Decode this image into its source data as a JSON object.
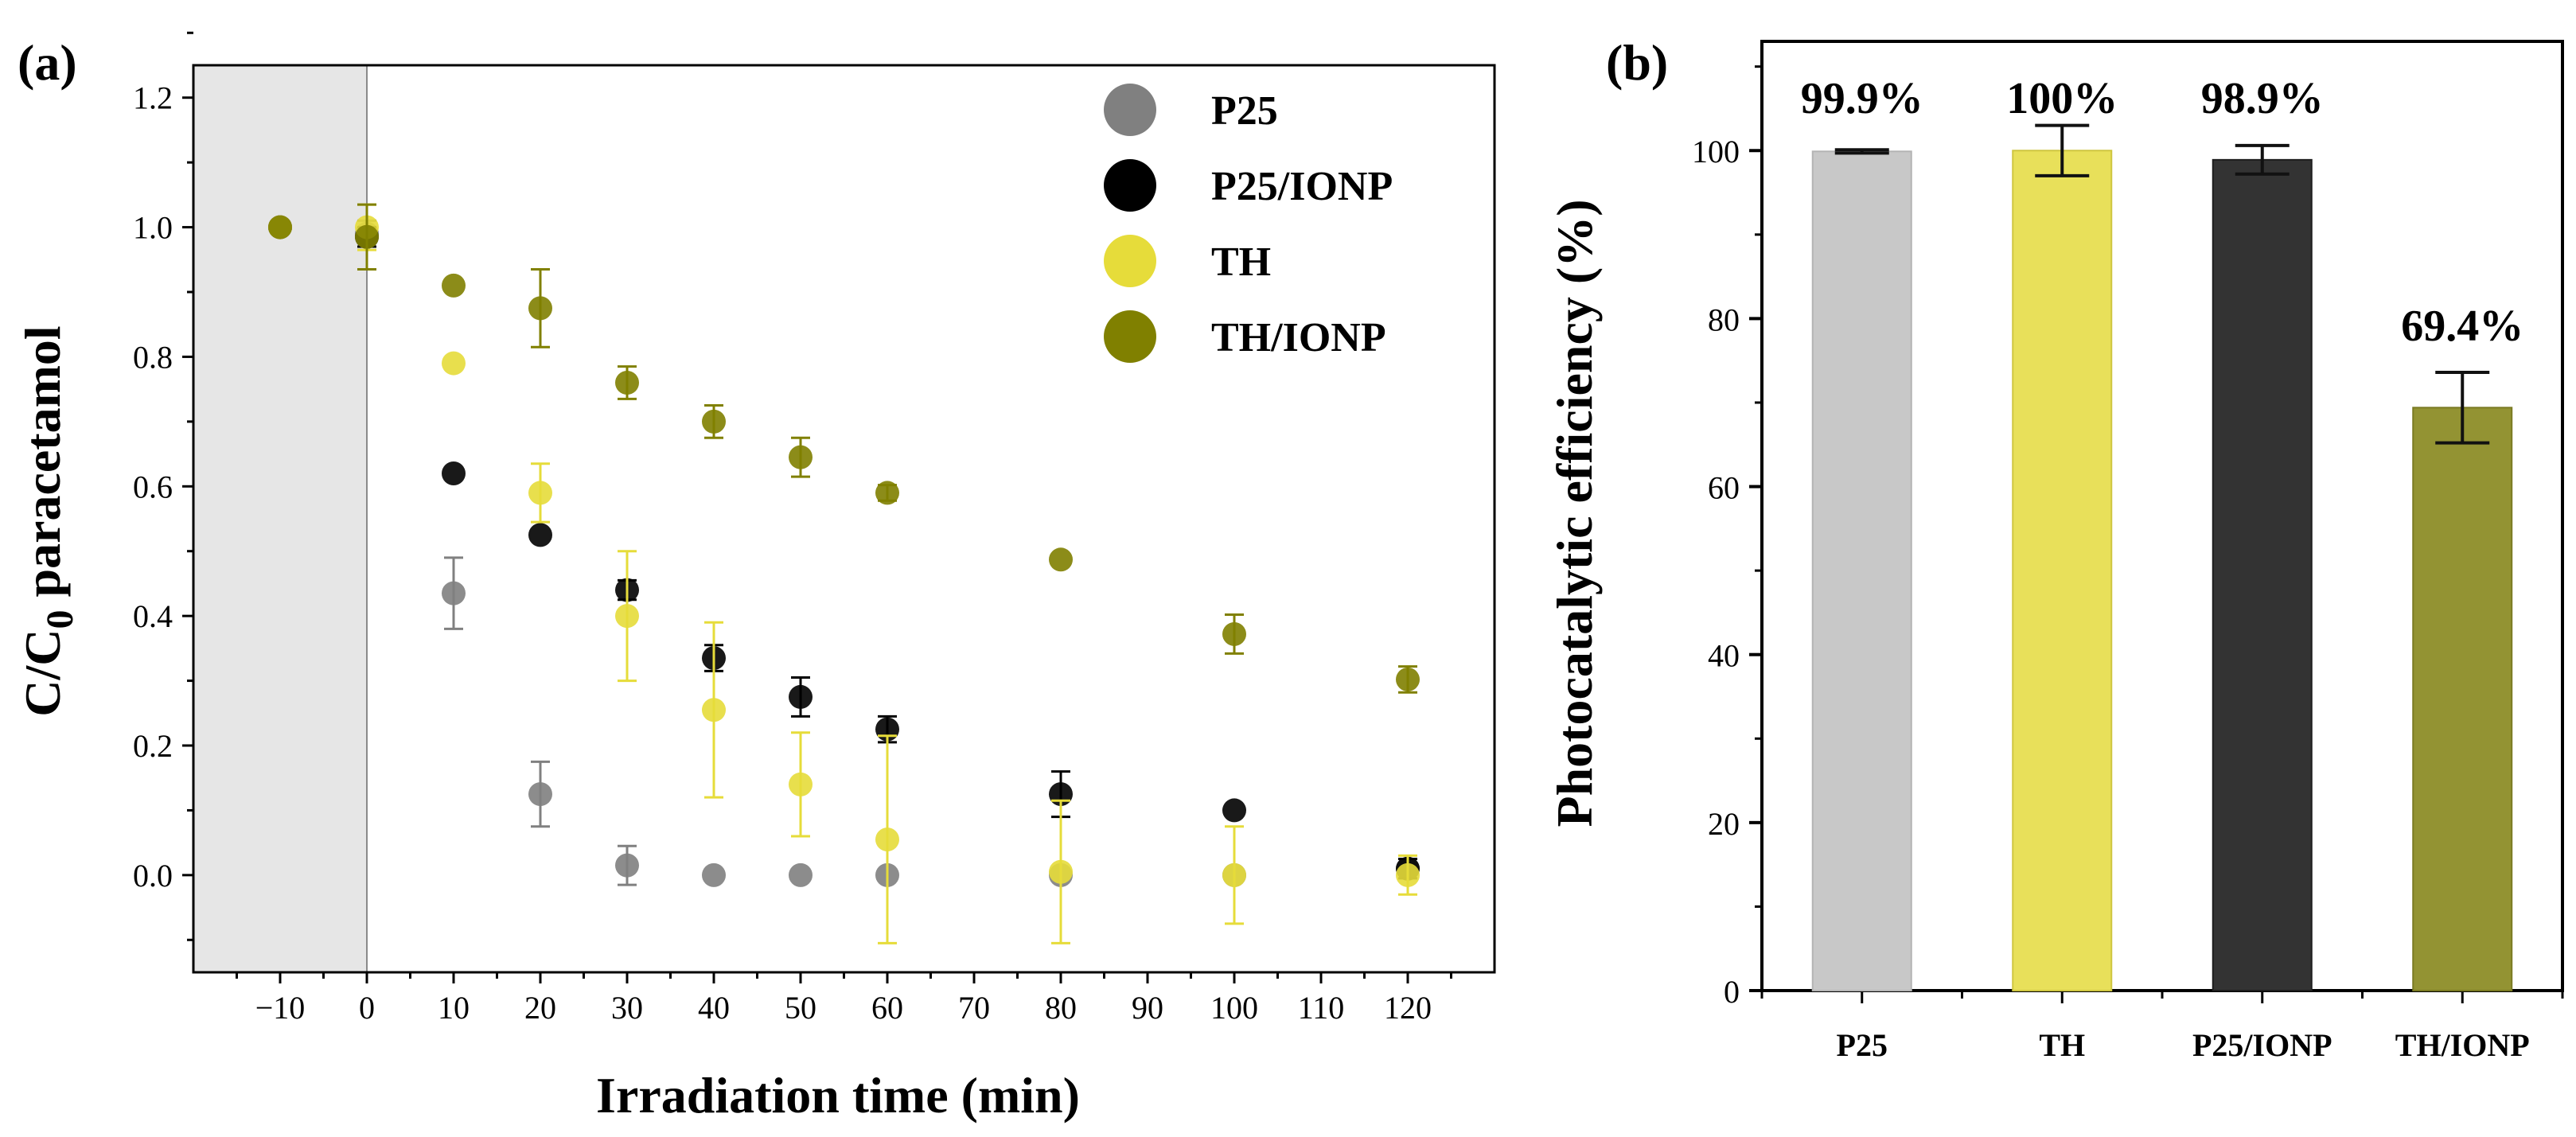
{
  "chart_data": [
    {
      "panel": "(a)",
      "type": "scatter",
      "xlabel": "Irradiation time (min)",
      "ylabel": "C/C0 paracetamol",
      "ylabel_main": "C/C",
      "ylabel_sub": "0",
      "ylabel_rest": " paracetamol",
      "xlim": [
        -20,
        130
      ],
      "ylim": [
        -0.15,
        1.25
      ],
      "xticks": [
        -10,
        0,
        10,
        20,
        30,
        40,
        50,
        60,
        70,
        80,
        90,
        100,
        110,
        120
      ],
      "xtick_labels": [
        "−10",
        "0",
        "10",
        "20",
        "30",
        "40",
        "50",
        "60",
        "70",
        "80",
        "90",
        "100",
        "110",
        "120"
      ],
      "yticks": [
        0.0,
        0.2,
        0.4,
        0.6,
        0.8,
        1.0,
        1.2
      ],
      "ytick_labels": [
        "0.0",
        "0.2",
        "0.4",
        "0.6",
        "0.8",
        "1.0",
        "1.2"
      ],
      "dark_period": [
        -20,
        0
      ],
      "legend_position": "top-right",
      "series": [
        {
          "name": "P25",
          "color": "#808080",
          "x": [
            -10,
            0,
            10,
            20,
            30,
            40,
            50,
            60,
            80,
            100,
            120
          ],
          "y": [
            1.0,
            0.99,
            0.435,
            0.125,
            0.015,
            0.0,
            0.0,
            0.0,
            0.0,
            0.0,
            0.01
          ],
          "err": [
            0,
            0.02,
            0.055,
            0.05,
            0.03,
            0,
            0,
            0,
            0,
            0,
            0
          ]
        },
        {
          "name": "P25/IONP",
          "color": "#000000",
          "x": [
            -10,
            0,
            10,
            20,
            30,
            40,
            50,
            60,
            80,
            100,
            120
          ],
          "y": [
            1.0,
            0.985,
            0.62,
            0.525,
            0.44,
            0.335,
            0.275,
            0.225,
            0.125,
            0.1,
            0.01
          ],
          "err": [
            0,
            0.015,
            0,
            0,
            0.015,
            0.02,
            0.03,
            0.02,
            0.035,
            0,
            0.015
          ]
        },
        {
          "name": "TH",
          "color": "#e6dc3a",
          "x": [
            -10,
            0,
            10,
            20,
            30,
            40,
            50,
            60,
            80,
            100,
            120
          ],
          "y": [
            1.0,
            1.0,
            0.79,
            0.59,
            0.4,
            0.255,
            0.14,
            0.055,
            0.005,
            0.0,
            0.0
          ],
          "err": [
            0,
            0.035,
            0,
            0.045,
            0.1,
            0.135,
            0.08,
            0.16,
            0.11,
            0.075,
            0.03
          ]
        },
        {
          "name": "TH/IONP",
          "color": "#808000",
          "x": [
            -10,
            0,
            10,
            20,
            30,
            40,
            50,
            60,
            80,
            100,
            120
          ],
          "y": [
            1.0,
            0.985,
            0.91,
            0.875,
            0.76,
            0.7,
            0.645,
            0.59,
            0.487,
            0.372,
            0.302
          ],
          "err": [
            0,
            0.05,
            0,
            0.06,
            0.025,
            0.025,
            0.03,
            0.012,
            0,
            0.03,
            0.02
          ]
        }
      ]
    },
    {
      "panel": "(b)",
      "type": "bar",
      "ylabel": "Photocatalytic efficiency (%)",
      "ylim": [
        0,
        113
      ],
      "yticks": [
        0,
        20,
        40,
        60,
        80,
        100
      ],
      "ytick_labels": [
        "0",
        "20",
        "40",
        "60",
        "80",
        "100"
      ],
      "categories": [
        "P25",
        "TH",
        "P25/IONP",
        "TH/IONP"
      ],
      "values": [
        99.9,
        100,
        98.9,
        69.4
      ],
      "errors": [
        0.2,
        3.0,
        1.7,
        4.2
      ],
      "data_labels": [
        "99.9%",
        "100%",
        "98.9%",
        "69.4%"
      ],
      "colors": [
        "#c8c8c8",
        "#e8e05a",
        "#333333",
        "#939333"
      ],
      "edge_colors": [
        "#b4b4b4",
        "#cfc640",
        "#1e1e1e",
        "#7a7a22"
      ]
    }
  ]
}
